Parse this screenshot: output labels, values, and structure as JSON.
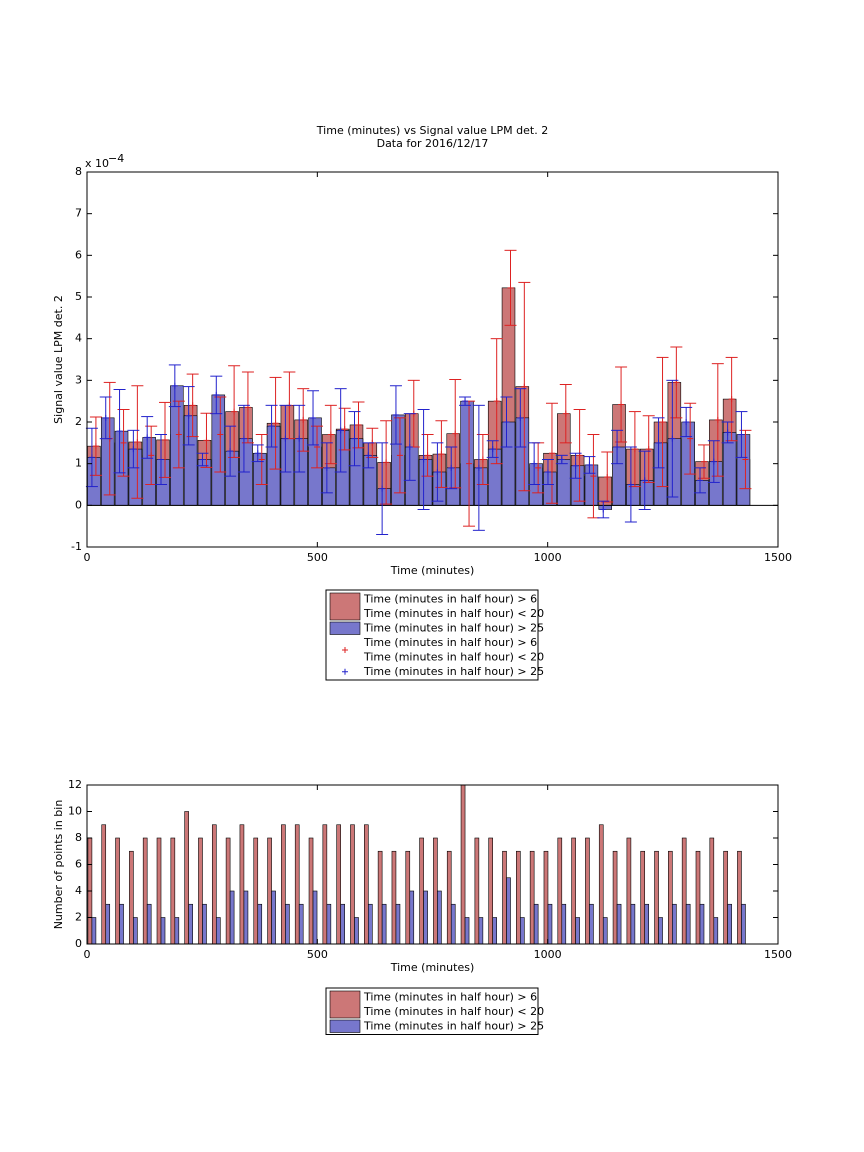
{
  "chart_data": [
    {
      "type": "bar_error",
      "title": "Time (minutes) vs Signal value LPM det. 2",
      "subtitle": "Data for 2016/12/17",
      "xlabel": "Time (minutes)",
      "ylabel": "Signal value LPM det. 2",
      "y_scale_label": "x 10",
      "y_scale_exponent": "−4",
      "x": [
        15,
        45,
        75,
        105,
        135,
        165,
        195,
        225,
        255,
        285,
        315,
        345,
        375,
        405,
        435,
        465,
        495,
        525,
        555,
        585,
        615,
        645,
        675,
        705,
        735,
        765,
        795,
        825,
        855,
        885,
        915,
        945,
        975,
        1005,
        1035,
        1065,
        1095,
        1125,
        1155,
        1185,
        1215,
        1245,
        1275,
        1305,
        1335,
        1365,
        1395,
        1425
      ],
      "series": [
        {
          "color": "#cc7777",
          "err_color": "#dd2222",
          "values": [
            1.42,
            1.6,
            1.5,
            1.52,
            1.2,
            1.57,
            1.7,
            2.4,
            1.56,
            1.7,
            2.25,
            2.35,
            1.1,
            1.97,
            2.4,
            2.05,
            1.4,
            1.7,
            1.83,
            1.93,
            1.5,
            1.03,
            1.2,
            2.2,
            1.2,
            1.23,
            1.72,
            1.0,
            1.1,
            2.5,
            5.22,
            2.85,
            0.9,
            1.25,
            2.2,
            1.2,
            0.7,
            0.68,
            2.42,
            1.35,
            1.35,
            2.0,
            2.95,
            1.6,
            1.05,
            2.05,
            2.55,
            1.1
          ],
          "errors": [
            0.7,
            1.35,
            0.8,
            1.35,
            0.7,
            0.9,
            0.8,
            0.75,
            0.65,
            0.9,
            1.1,
            0.85,
            0.6,
            1.1,
            0.8,
            0.75,
            0.5,
            0.7,
            0.5,
            0.55,
            0.35,
            1.0,
            0.9,
            0.8,
            0.5,
            0.8,
            1.3,
            1.5,
            0.6,
            1.5,
            0.9,
            2.5,
            0.6,
            1.2,
            0.7,
            1.1,
            1.0,
            0.6,
            0.9,
            0.9,
            0.8,
            1.55,
            0.85,
            0.85,
            0.4,
            1.35,
            1.0,
            0.7
          ]
        },
        {
          "color": "#7777cc",
          "err_color": "#2222cc",
          "values": [
            1.15,
            2.1,
            1.78,
            1.35,
            1.63,
            1.1,
            2.87,
            2.15,
            1.1,
            2.65,
            1.3,
            1.6,
            1.25,
            1.9,
            1.6,
            1.6,
            2.1,
            0.9,
            1.8,
            1.6,
            1.2,
            0.4,
            2.17,
            1.4,
            1.1,
            0.8,
            0.9,
            2.5,
            0.9,
            1.35,
            2.0,
            2.1,
            1.0,
            0.8,
            1.1,
            0.95,
            0.97,
            -0.1,
            1.4,
            0.5,
            0.6,
            1.5,
            1.6,
            2.0,
            0.6,
            1.05,
            1.75,
            1.7
          ],
          "errors": [
            0.7,
            0.5,
            1.0,
            0.45,
            0.5,
            0.6,
            0.5,
            0.7,
            0.15,
            0.45,
            0.6,
            0.8,
            0.2,
            0.5,
            0.8,
            0.8,
            0.65,
            0.6,
            1.0,
            0.65,
            0.3,
            1.1,
            0.7,
            0.8,
            1.2,
            0.7,
            0.5,
            0.1,
            1.5,
            0.2,
            0.6,
            0.7,
            0.5,
            0.3,
            0.1,
            0.3,
            0.2,
            0.2,
            0.4,
            0.9,
            0.7,
            0.6,
            1.4,
            0.35,
            0.3,
            0.5,
            0.25,
            0.55
          ]
        }
      ],
      "xlim": [
        0,
        1500
      ],
      "xticks": [
        0,
        500,
        1000,
        1500
      ],
      "ylim": [
        -1,
        8
      ],
      "yticks": [
        -1,
        0,
        1,
        2,
        3,
        4,
        5,
        6,
        7,
        8
      ],
      "legend": [
        {
          "lines": [
            "Time (minutes in half hour) > 6",
            "Time (minutes in half hour) < 20"
          ],
          "series": 0,
          "marker": "patch"
        },
        {
          "lines": [
            "Time (minutes in half hour) > 25"
          ],
          "series": 1,
          "marker": "patch"
        },
        {
          "lines": [
            "Time (minutes in half hour) > 6",
            "Time (minutes in half hour) < 20"
          ],
          "series": 0,
          "marker": "plus"
        },
        {
          "lines": [
            "Time (minutes in half hour) > 25"
          ],
          "series": 1,
          "marker": "plus"
        }
      ]
    },
    {
      "type": "grouped_bar",
      "xlabel": "Time (minutes)",
      "ylabel": "Number of points in bin",
      "x": [
        15,
        45,
        75,
        105,
        135,
        165,
        195,
        225,
        255,
        285,
        315,
        345,
        375,
        405,
        435,
        465,
        495,
        525,
        555,
        585,
        615,
        645,
        675,
        705,
        735,
        765,
        795,
        825,
        855,
        885,
        915,
        945,
        975,
        1005,
        1035,
        1065,
        1095,
        1125,
        1155,
        1185,
        1215,
        1245,
        1275,
        1305,
        1335,
        1365,
        1395,
        1425
      ],
      "series": [
        {
          "color": "#cc7777",
          "values": [
            8,
            9,
            8,
            7,
            8,
            8,
            8,
            10,
            8,
            9,
            8,
            9,
            8,
            8,
            9,
            9,
            8,
            9,
            9,
            9,
            9,
            7,
            7,
            7,
            8,
            8,
            7,
            12,
            8,
            8,
            7,
            7,
            7,
            7,
            8,
            8,
            8,
            9,
            7,
            8,
            7,
            7,
            7,
            8,
            7,
            8,
            7,
            7
          ]
        },
        {
          "color": "#7777cc",
          "values": [
            2,
            3,
            3,
            2,
            3,
            2,
            2,
            3,
            3,
            2,
            4,
            4,
            3,
            4,
            3,
            3,
            4,
            3,
            3,
            2,
            3,
            3,
            3,
            4,
            4,
            4,
            3,
            2,
            2,
            2,
            5,
            2,
            3,
            3,
            3,
            2,
            3,
            2,
            3,
            3,
            3,
            2,
            3,
            3,
            3,
            2,
            3,
            3
          ]
        }
      ],
      "xlim": [
        0,
        1500
      ],
      "xticks": [
        0,
        500,
        1000,
        1500
      ],
      "ylim": [
        0,
        12
      ],
      "yticks": [
        0,
        2,
        4,
        6,
        8,
        10,
        12
      ],
      "legend": [
        {
          "lines": [
            "Time (minutes in half hour) > 6",
            "Time (minutes in half hour) < 20"
          ],
          "series": 0,
          "marker": "patch"
        },
        {
          "lines": [
            "Time (minutes in half hour) > 25"
          ],
          "series": 1,
          "marker": "patch"
        }
      ]
    }
  ]
}
